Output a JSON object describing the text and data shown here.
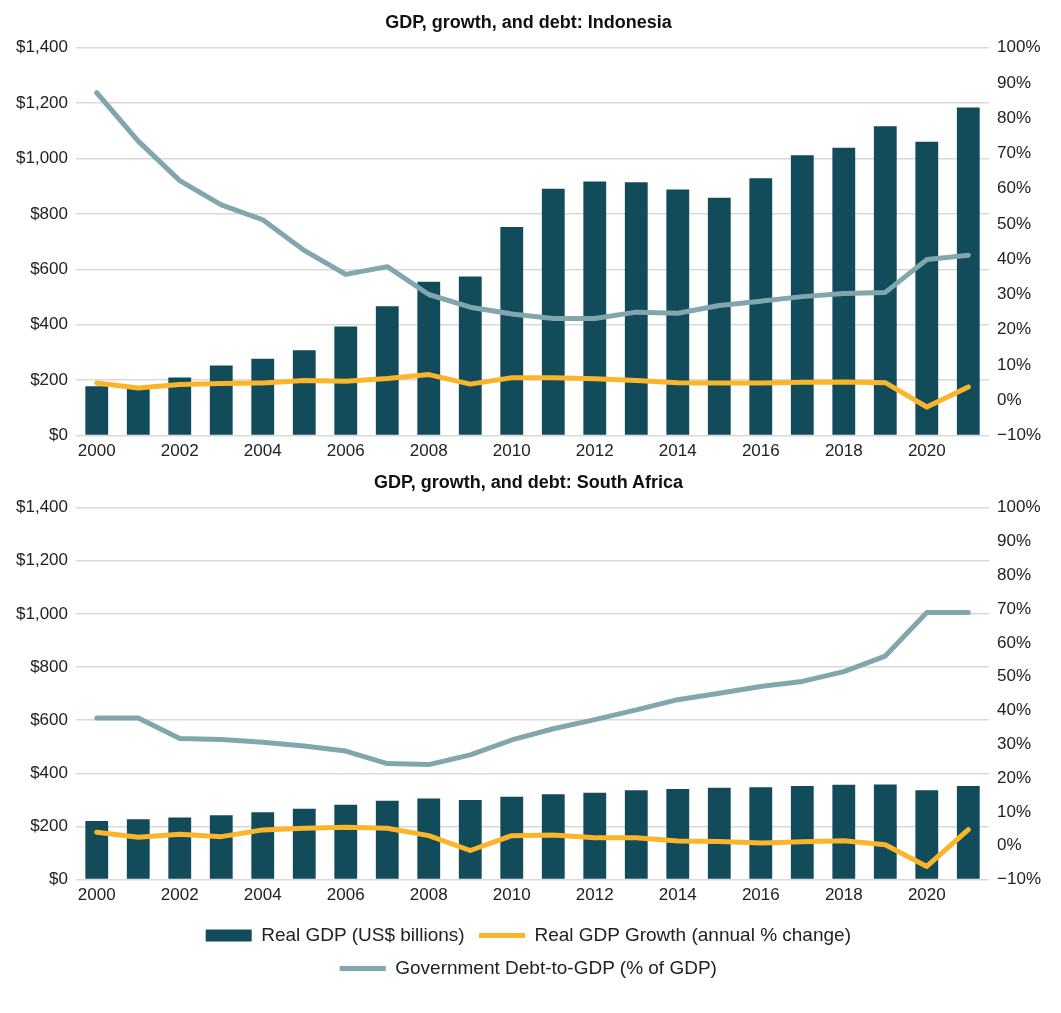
{
  "chart_data": [
    {
      "type": "bar",
      "title": "GDP, growth, and debt: Indonesia",
      "categories": [
        "2000",
        null,
        "2002",
        null,
        "2004",
        null,
        "2006",
        null,
        "2008",
        null,
        "2010",
        null,
        "2012",
        null,
        "2014",
        null,
        "2016",
        null,
        "2018",
        null,
        "2020",
        null
      ],
      "series": [
        {
          "color": "#124b5a",
          "values": [
            178,
            171,
            210,
            253,
            277,
            308,
            394,
            467,
            555,
            574,
            753,
            891,
            917,
            914,
            888,
            858,
            929,
            1012,
            1039,
            1116,
            1060,
            1184
          ]
        },
        {
          "type": "line",
          "axis": "y2",
          "color": "#fbb52b",
          "values": [
            4.9,
            3.5,
            4.5,
            4.8,
            4.9,
            5.6,
            5.4,
            6.2,
            7.3,
            4.6,
            6.4,
            6.4,
            6.1,
            5.6,
            5.0,
            4.9,
            4.9,
            5.1,
            5.2,
            5.0,
            -1.9,
            3.8
          ]
        },
        {
          "type": "line",
          "axis": "y2",
          "color": "#82a6ad",
          "values": [
            87.2,
            73.5,
            62.3,
            55.4,
            51.2,
            42.5,
            35.7,
            37.9,
            30.0,
            26.4,
            24.5,
            23.2,
            23.2,
            25.0,
            24.7,
            26.9,
            28.1,
            29.4,
            30.3,
            30.6,
            39.9,
            41.1
          ]
        }
      ],
      "ylim": [
        0,
        1400
      ],
      "yticks": [
        {
          "value": 0,
          "label": "$0"
        },
        {
          "value": 200,
          "label": "$200"
        },
        {
          "value": 400,
          "label": "$400"
        },
        {
          "value": 600,
          "label": "$600"
        },
        {
          "value": 800,
          "label": "$800"
        },
        {
          "value": 1000,
          "label": "$1,000"
        },
        {
          "value": 1200,
          "label": "$1,200"
        },
        {
          "value": 1400,
          "label": "$1,400"
        }
      ],
      "y2lim": [
        -10,
        100
      ],
      "y2ticks": [
        {
          "value": -10,
          "label": "−10%"
        },
        {
          "value": 0,
          "label": "0%"
        },
        {
          "value": 10,
          "label": "10%"
        },
        {
          "value": 20,
          "label": "20%"
        },
        {
          "value": 30,
          "label": "30%"
        },
        {
          "value": 40,
          "label": "40%"
        },
        {
          "value": 50,
          "label": "50%"
        },
        {
          "value": 60,
          "label": "60%"
        },
        {
          "value": 70,
          "label": "70%"
        },
        {
          "value": 80,
          "label": "80%"
        },
        {
          "value": 90,
          "label": "90%"
        },
        {
          "value": 100,
          "label": "100%"
        }
      ],
      "grid": "y",
      "marker": "none",
      "legend": false
    },
    {
      "type": "bar",
      "title": "GDP, growth, and debt: South Africa",
      "categories": [
        "2000",
        null,
        "2002",
        null,
        "2004",
        null,
        "2006",
        null,
        "2008",
        null,
        "2010",
        null,
        "2012",
        null,
        "2014",
        null,
        "2016",
        null,
        "2018",
        null,
        "2020",
        null
      ],
      "series": [
        {
          "name": "Real GDP (US$ billions)",
          "color": "#124b5a",
          "values": [
            221,
            227,
            234,
            242,
            253,
            267,
            282,
            297,
            305,
            300,
            312,
            321,
            327,
            336,
            341,
            346,
            348,
            352,
            357,
            358,
            336,
            352
          ]
        },
        {
          "name": "Real GDP Growth (annual % change)",
          "type": "line",
          "axis": "y2",
          "color": "#fbb52b",
          "values": [
            4.0,
            2.5,
            3.4,
            2.7,
            4.7,
            5.2,
            5.5,
            5.2,
            3.0,
            -1.4,
            3.0,
            3.2,
            2.4,
            2.4,
            1.4,
            1.3,
            0.8,
            1.2,
            1.5,
            0.3,
            -6.1,
            4.8
          ]
        },
        {
          "name": "Government Debt-to-GDP (% of GDP)",
          "type": "line",
          "axis": "y2",
          "color": "#82a6ad",
          "values": [
            37.8,
            37.8,
            31.7,
            31.4,
            30.6,
            29.5,
            28.0,
            24.3,
            24.0,
            26.9,
            31.3,
            34.6,
            37.3,
            40.2,
            43.2,
            45.1,
            47.1,
            48.6,
            51.5,
            56.1,
            69.0,
            69.0
          ]
        }
      ],
      "ylim": [
        0,
        1400
      ],
      "yticks": [
        {
          "value": 0,
          "label": "$0"
        },
        {
          "value": 200,
          "label": "$200"
        },
        {
          "value": 400,
          "label": "$400"
        },
        {
          "value": 600,
          "label": "$600"
        },
        {
          "value": 800,
          "label": "$800"
        },
        {
          "value": 1000,
          "label": "$1,000"
        },
        {
          "value": 1200,
          "label": "$1,200"
        },
        {
          "value": 1400,
          "label": "$1,400"
        }
      ],
      "y2lim": [
        -10,
        100
      ],
      "y2ticks": [
        {
          "value": -10,
          "label": "−10%"
        },
        {
          "value": 0,
          "label": "0%"
        },
        {
          "value": 10,
          "label": "10%"
        },
        {
          "value": 20,
          "label": "20%"
        },
        {
          "value": 30,
          "label": "30%"
        },
        {
          "value": 40,
          "label": "40%"
        },
        {
          "value": 50,
          "label": "50%"
        },
        {
          "value": 60,
          "label": "60%"
        },
        {
          "value": 70,
          "label": "70%"
        },
        {
          "value": 80,
          "label": "80%"
        },
        {
          "value": 90,
          "label": "90%"
        },
        {
          "value": 100,
          "label": "100%"
        }
      ],
      "grid": "y",
      "marker": "none",
      "legend": "bottom"
    }
  ]
}
